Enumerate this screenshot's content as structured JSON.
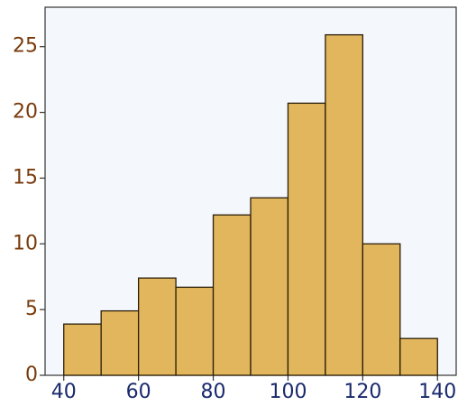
{
  "chart_data": {
    "type": "histogram",
    "bins": [
      40,
      50,
      60,
      70,
      80,
      90,
      100,
      110,
      120,
      130,
      140
    ],
    "values": [
      3.9,
      4.9,
      7.4,
      6.7,
      12.2,
      13.5,
      20.7,
      25.9,
      10,
      2.8
    ],
    "color": "#e2b65c",
    "edge_color": "#2a1e0a",
    "xlim": [
      35,
      145
    ],
    "xticks": [
      40,
      60,
      80,
      100,
      120,
      140
    ],
    "ylim": [
      0,
      28
    ],
    "yticks": [
      0,
      5,
      10,
      15,
      20,
      25
    ]
  }
}
